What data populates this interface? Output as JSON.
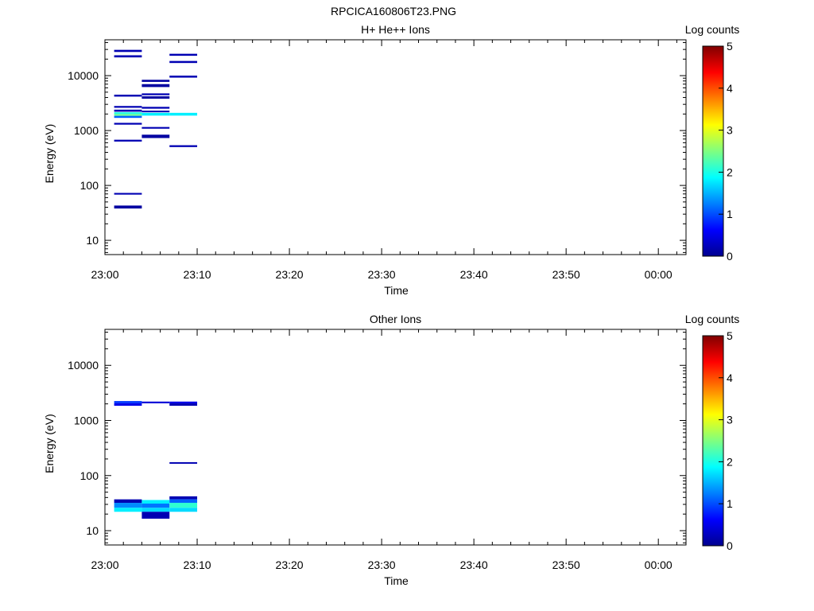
{
  "title": "RPCICA160806T23.PNG",
  "chart_data": [
    {
      "type": "heatmap",
      "title": "H+ He++ Ions",
      "xlabel": "Time",
      "ylabel": "Energy (eV)",
      "yscale": "log",
      "ylim": [
        5.5,
        45000
      ],
      "xlim": [
        "23:00",
        "00:03"
      ],
      "x_ticks": [
        "23:00",
        "23:10",
        "23:20",
        "23:30",
        "23:40",
        "23:50",
        "00:00"
      ],
      "y_ticks": [
        "10",
        "100",
        "1000",
        "10000"
      ],
      "colorbar": {
        "label": "Log counts",
        "min": 0,
        "max": 5,
        "ticks": [
          "0",
          "1",
          "2",
          "3",
          "4",
          "5"
        ]
      },
      "cells": [
        {
          "t0": "23:01",
          "t1": "23:04",
          "e0": 27000,
          "e1": 29500,
          "v": 0.2
        },
        {
          "t0": "23:01",
          "t1": "23:04",
          "e0": 21500,
          "e1": 23500,
          "v": 0.2
        },
        {
          "t0": "23:01",
          "t1": "23:04",
          "e0": 4150,
          "e1": 4500,
          "v": 0.2
        },
        {
          "t0": "23:01",
          "t1": "23:04",
          "e0": 2600,
          "e1": 2800,
          "v": 0.2
        },
        {
          "t0": "23:01",
          "t1": "23:04",
          "e0": 2200,
          "e1": 2400,
          "v": 0.2
        },
        {
          "t0": "23:01",
          "t1": "23:04",
          "e0": 2000,
          "e1": 2150,
          "v": 2.0
        },
        {
          "t0": "23:01",
          "t1": "23:04",
          "e0": 1850,
          "e1": 2000,
          "v": 2.4
        },
        {
          "t0": "23:01",
          "t1": "23:04",
          "e0": 1700,
          "e1": 1850,
          "v": 1.1
        },
        {
          "t0": "23:01",
          "t1": "23:04",
          "e0": 1280,
          "e1": 1380,
          "v": 0.2
        },
        {
          "t0": "23:01",
          "t1": "23:04",
          "e0": 630,
          "e1": 680,
          "v": 0.2
        },
        {
          "t0": "23:01",
          "t1": "23:04",
          "e0": 68,
          "e1": 73,
          "v": 0.2
        },
        {
          "t0": "23:01",
          "t1": "23:04",
          "e0": 38,
          "e1": 43,
          "v": 0.1
        },
        {
          "t0": "23:04",
          "t1": "23:07",
          "e0": 7700,
          "e1": 8400,
          "v": 0.1
        },
        {
          "t0": "23:04",
          "t1": "23:07",
          "e0": 6200,
          "e1": 7000,
          "v": 0.1
        },
        {
          "t0": "23:04",
          "t1": "23:07",
          "e0": 4400,
          "e1": 4750,
          "v": 0.2
        },
        {
          "t0": "23:04",
          "t1": "23:07",
          "e0": 3800,
          "e1": 4200,
          "v": 0.1
        },
        {
          "t0": "23:04",
          "t1": "23:07",
          "e0": 2500,
          "e1": 2700,
          "v": 0.2
        },
        {
          "t0": "23:04",
          "t1": "23:07",
          "e0": 2150,
          "e1": 2300,
          "v": 0.2
        },
        {
          "t0": "23:04",
          "t1": "23:07",
          "e0": 1870,
          "e1": 2100,
          "v": 1.8
        },
        {
          "t0": "23:04",
          "t1": "23:07",
          "e0": 1080,
          "e1": 1160,
          "v": 0.2
        },
        {
          "t0": "23:04",
          "t1": "23:07",
          "e0": 730,
          "e1": 840,
          "v": 0.1
        },
        {
          "t0": "23:07",
          "t1": "23:10",
          "e0": 23000,
          "e1": 25000,
          "v": 0.2
        },
        {
          "t0": "23:07",
          "t1": "23:10",
          "e0": 17000,
          "e1": 18500,
          "v": 0.2
        },
        {
          "t0": "23:07",
          "t1": "23:10",
          "e0": 9200,
          "e1": 10000,
          "v": 0.2
        },
        {
          "t0": "23:07",
          "t1": "23:10",
          "e0": 1870,
          "e1": 2100,
          "v": 1.8
        },
        {
          "t0": "23:07",
          "t1": "23:10",
          "e0": 500,
          "e1": 540,
          "v": 0.2
        }
      ]
    },
    {
      "type": "heatmap",
      "title": "Other Ions",
      "xlabel": "Time",
      "ylabel": "Energy (eV)",
      "yscale": "log",
      "ylim": [
        5.5,
        45000
      ],
      "xlim": [
        "23:00",
        "00:03"
      ],
      "x_ticks": [
        "23:00",
        "23:10",
        "23:20",
        "23:30",
        "23:40",
        "23:50",
        "00:00"
      ],
      "y_ticks": [
        "10",
        "100",
        "1000",
        "10000"
      ],
      "colorbar": {
        "label": "Log counts",
        "min": 0,
        "max": 5,
        "ticks": [
          "0",
          "1",
          "2",
          "3",
          "4",
          "5"
        ]
      },
      "cells": [
        {
          "t0": "23:01",
          "t1": "23:04",
          "e0": 2050,
          "e1": 2250,
          "v": 0.9
        },
        {
          "t0": "23:01",
          "t1": "23:04",
          "e0": 1850,
          "e1": 2050,
          "v": 0.5
        },
        {
          "t0": "23:01",
          "t1": "23:04",
          "e0": 32,
          "e1": 37,
          "v": 0.2
        },
        {
          "t0": "23:01",
          "t1": "23:04",
          "e0": 26,
          "e1": 32,
          "v": 1.3
        },
        {
          "t0": "23:01",
          "t1": "23:04",
          "e0": 22,
          "e1": 26,
          "v": 1.8
        },
        {
          "t0": "23:04",
          "t1": "23:07",
          "e0": 2050,
          "e1": 2200,
          "v": 0.4
        },
        {
          "t0": "23:04",
          "t1": "23:07",
          "e0": 31,
          "e1": 36,
          "v": 1.8
        },
        {
          "t0": "23:04",
          "t1": "23:07",
          "e0": 26,
          "e1": 31,
          "v": 1.2
        },
        {
          "t0": "23:04",
          "t1": "23:07",
          "e0": 22,
          "e1": 26,
          "v": 1.7
        },
        {
          "t0": "23:04",
          "t1": "23:07",
          "e0": 16.5,
          "e1": 22,
          "v": 0.2
        },
        {
          "t0": "23:07",
          "t1": "23:10",
          "e0": 2050,
          "e1": 2200,
          "v": 0.5
        },
        {
          "t0": "23:07",
          "t1": "23:10",
          "e0": 1850,
          "e1": 2050,
          "v": 0.2
        },
        {
          "t0": "23:07",
          "t1": "23:10",
          "e0": 165,
          "e1": 175,
          "v": 0.2
        },
        {
          "t0": "23:07",
          "t1": "23:10",
          "e0": 37,
          "e1": 42,
          "v": 0.2
        },
        {
          "t0": "23:07",
          "t1": "23:10",
          "e0": 32,
          "e1": 37,
          "v": 1.1
        },
        {
          "t0": "23:07",
          "t1": "23:10",
          "e0": 26,
          "e1": 32,
          "v": 2.1
        },
        {
          "t0": "23:07",
          "t1": "23:10",
          "e0": 22,
          "e1": 26,
          "v": 1.7
        }
      ]
    }
  ]
}
